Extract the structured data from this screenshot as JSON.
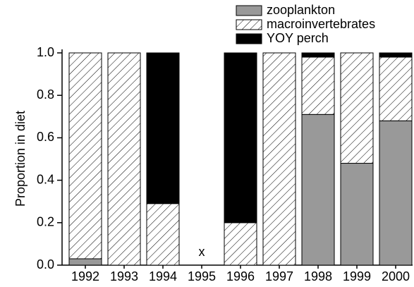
{
  "chart_data": {
    "type": "stacked_bar",
    "y_label": "Proportion in diet",
    "categories": [
      "1992",
      "1993",
      "1994",
      "1995",
      "1996",
      "1997",
      "1998",
      "1999",
      "2000"
    ],
    "series": [
      {
        "name": "zooplankton",
        "color": "#999999",
        "values": [
          0.03,
          0,
          0,
          null,
          0,
          0,
          0.71,
          0.48,
          0.68
        ]
      },
      {
        "name": "macroinvertebrates",
        "color": "#ffffff",
        "hatch": true,
        "values": [
          0.97,
          1.0,
          0.29,
          null,
          0.2,
          1.0,
          0.27,
          0.52,
          0.3
        ]
      },
      {
        "name": "YOY perch",
        "color": "#000000",
        "values": [
          0,
          0,
          0.71,
          null,
          0.8,
          0,
          0.02,
          0,
          0.02
        ]
      }
    ],
    "annotations": [
      {
        "category": "1995",
        "text": "x"
      }
    ],
    "ylim": [
      0,
      1.0
    ],
    "yticks": [
      {
        "value": 0,
        "label": "0.0"
      },
      0.2,
      0.4,
      0.6,
      0.8,
      {
        "value": 1.0,
        "label": "1.0"
      }
    ]
  }
}
